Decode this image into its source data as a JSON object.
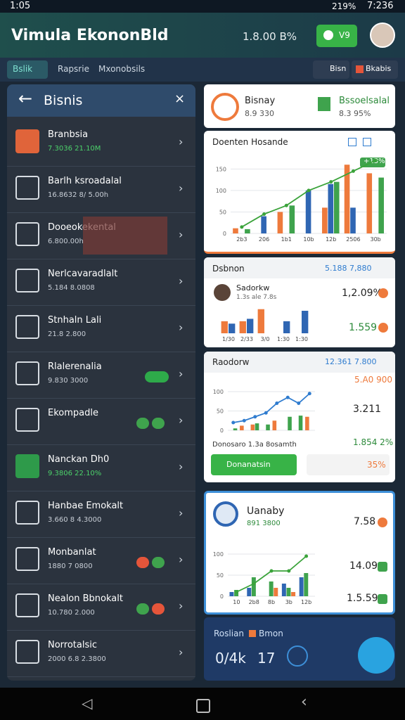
{
  "status_bar": {
    "time": "1:05",
    "battery": "219%",
    "clock": "7:236"
  },
  "header": {
    "title": "Vimula EkononBld",
    "balance": "1.8.00 B%",
    "button": "V9"
  },
  "tabs": [
    "Bslik",
    "Rapsrie",
    "Mxonobsils"
  ],
  "actions": [
    "Bisn",
    "Bkabis"
  ],
  "panel": {
    "title": "Bisnis",
    "items": [
      {
        "name": "Branbsia",
        "detail": "7.3036 21.10M"
      },
      {
        "name": "Barlh ksroadalal",
        "detail": "16.8632 8/ 5.00h"
      },
      {
        "name": "Dooeokekental",
        "detail": "6.800.00h"
      },
      {
        "name": "Nerlcavaradlalt",
        "detail": "5.184 8.0808"
      },
      {
        "name": "Stnhaln Lali",
        "detail": "21.8 2.800"
      },
      {
        "name": "Rlalerenalia",
        "detail": "9.830 3000"
      },
      {
        "name": "Ekompadle"
      },
      {
        "name": "Nanckan Dh0",
        "detail": "9.3806 22.10%"
      },
      {
        "name": "Hanbae Emokalt",
        "detail": "3.660 8 4.3000"
      },
      {
        "name": "Monbanlat",
        "detail": "1880 7 0800"
      },
      {
        "name": "Nealon Bbnokalt",
        "detail": "10.780 2.000"
      },
      {
        "name": "Norrotalsic",
        "detail": "2000 6.8 2.3800"
      }
    ]
  },
  "summary": {
    "left_title": "Bisnay",
    "left_value": "8.9 330",
    "right_title": "Bssoelsalal",
    "right_value": "8.3 95%"
  },
  "revenue": {
    "title": "Doenten Hosande",
    "badge": "+13%",
    "chart": {
      "type": "bar",
      "categories": [
        "2b3",
        "206",
        "1b1",
        "10b",
        "12b",
        "2506",
        "30b"
      ],
      "ylim": [
        0,
        180
      ],
      "yticks": [
        0,
        50,
        100,
        150
      ],
      "series": [
        {
          "color": "#ee7a3c",
          "values": [
            12,
            0,
            50,
            0,
            60,
            160,
            140
          ]
        },
        {
          "color": "#2f66b3",
          "values": [
            0,
            40,
            0,
            100,
            115,
            60,
            0
          ]
        },
        {
          "color": "#3fa34d",
          "values": [
            10,
            0,
            65,
            0,
            120,
            0,
            130
          ]
        }
      ],
      "line": {
        "color": "#3aa33a",
        "values": [
          15,
          45,
          65,
          100,
          120,
          145,
          170
        ]
      }
    }
  },
  "sales": {
    "title": "Dsbnon",
    "range": "5.188 7,880",
    "item": "Sadorkw",
    "item_detail": "1.3s ale 7.8s",
    "values": [
      "1,2.09%",
      "1.559"
    ],
    "chart": {
      "type": "bar",
      "categories": [
        "1/30",
        "2/33",
        "3/0",
        "1:30",
        "1:30"
      ],
      "ylim": [
        0,
        35
      ],
      "series": [
        {
          "color": "#ee7a3c",
          "values": [
            15,
            15,
            30,
            0,
            0
          ]
        },
        {
          "color": "#2f66b3",
          "values": [
            12,
            18,
            0,
            15,
            28
          ]
        }
      ]
    }
  },
  "report": {
    "title": "Raodorw",
    "range": "12.361 7.800",
    "values": [
      "5.A0 900",
      "3.211",
      "1.854 2%"
    ],
    "footer": "Donosaro 1.3a 8osamth",
    "button": "Donanatsin",
    "percent": "35%",
    "chart": {
      "type": "bar",
      "ylim": [
        0,
        120
      ],
      "yticks": [
        0,
        50,
        100
      ],
      "series": [
        {
          "color": "#ee7a3c",
          "values": [
            0,
            12,
            15,
            0,
            25,
            0,
            0,
            35
          ]
        },
        {
          "color": "#3fa34d",
          "values": [
            5,
            0,
            18,
            15,
            0,
            35,
            38,
            0
          ]
        }
      ],
      "line": {
        "color": "#2f7ccf",
        "values": [
          20,
          25,
          35,
          45,
          70,
          85,
          70,
          95
        ]
      }
    }
  },
  "highlight": {
    "title": "Uanaby",
    "value": "891 3800",
    "values": [
      "7.58",
      "14.09",
      "1.5.59"
    ],
    "chart": {
      "type": "bar",
      "categories": [
        "10",
        "2b8",
        "8b",
        "3b",
        "12b"
      ],
      "ylim": [
        0,
        120
      ],
      "yticks": [
        0,
        50,
        100
      ],
      "series": [
        {
          "color": "#2f66b3",
          "values": [
            10,
            20,
            0,
            30,
            45
          ]
        },
        {
          "color": "#3fa34d",
          "values": [
            15,
            45,
            35,
            20,
            55
          ]
        },
        {
          "color": "#ee7a3c",
          "values": [
            0,
            0,
            20,
            10,
            0
          ]
        }
      ],
      "line": {
        "color": "#3aa33a",
        "values": [
          10,
          30,
          60,
          60,
          95
        ]
      }
    }
  },
  "footer_card": {
    "labels": [
      "Roslian",
      "Bmon"
    ],
    "values": [
      "0/4k",
      "17"
    ]
  }
}
